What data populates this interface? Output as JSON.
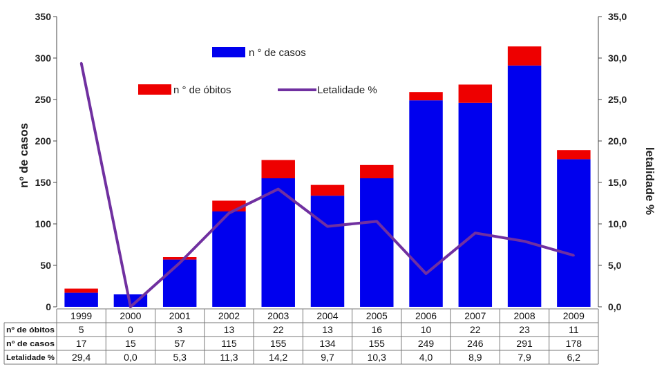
{
  "chart_data": {
    "type": "bar",
    "categories": [
      "1999",
      "2000",
      "2001",
      "2002",
      "2003",
      "2004",
      "2005",
      "2006",
      "2007",
      "2008",
      "2009"
    ],
    "series": [
      {
        "name": "n ° de casos",
        "values": [
          17,
          15,
          57,
          115,
          155,
          134,
          155,
          249,
          246,
          291,
          178
        ],
        "color": "#0000ee",
        "kind": "bar-stacked"
      },
      {
        "name": "n ° de óbitos",
        "values": [
          5,
          0,
          3,
          13,
          22,
          13,
          16,
          10,
          22,
          23,
          11
        ],
        "color": "#ee0000",
        "kind": "bar-stacked"
      },
      {
        "name": "Letalidade %",
        "values": [
          29.4,
          0.0,
          5.3,
          11.3,
          14.2,
          9.7,
          10.3,
          4.0,
          8.9,
          7.9,
          6.2
        ],
        "color": "#7030a0",
        "kind": "line",
        "axis": "right"
      }
    ],
    "ylabel": "nº de casos",
    "y2label": "letalidade %",
    "ylim": [
      0,
      350
    ],
    "y2lim": [
      0,
      35
    ],
    "yticks": [
      "0",
      "50",
      "100",
      "150",
      "200",
      "250",
      "300",
      "350"
    ],
    "y2ticks": [
      "0,0",
      "5,0",
      "10,0",
      "15,0",
      "20,0",
      "25,0",
      "30,0",
      "35,0"
    ],
    "legend": [
      {
        "label": "n ° de casos",
        "color": "#0000ee",
        "shape": "box"
      },
      {
        "label": "n ° de óbitos",
        "color": "#ee0000",
        "shape": "box"
      },
      {
        "label": "Letalidade %",
        "color": "#7030a0",
        "shape": "line"
      }
    ],
    "table": {
      "rows": [
        {
          "label": "nº de óbitos",
          "cells": [
            "5",
            "0",
            "3",
            "13",
            "22",
            "13",
            "16",
            "10",
            "22",
            "23",
            "11"
          ]
        },
        {
          "label": "nº de casos",
          "cells": [
            "17",
            "15",
            "57",
            "115",
            "155",
            "134",
            "155",
            "249",
            "246",
            "291",
            "178"
          ]
        },
        {
          "label": "Letalidade %",
          "cells": [
            "29,4",
            "0,0",
            "5,3",
            "11,3",
            "14,2",
            "9,7",
            "10,3",
            "4,0",
            "8,9",
            "7,9",
            "6,2"
          ]
        }
      ]
    }
  }
}
